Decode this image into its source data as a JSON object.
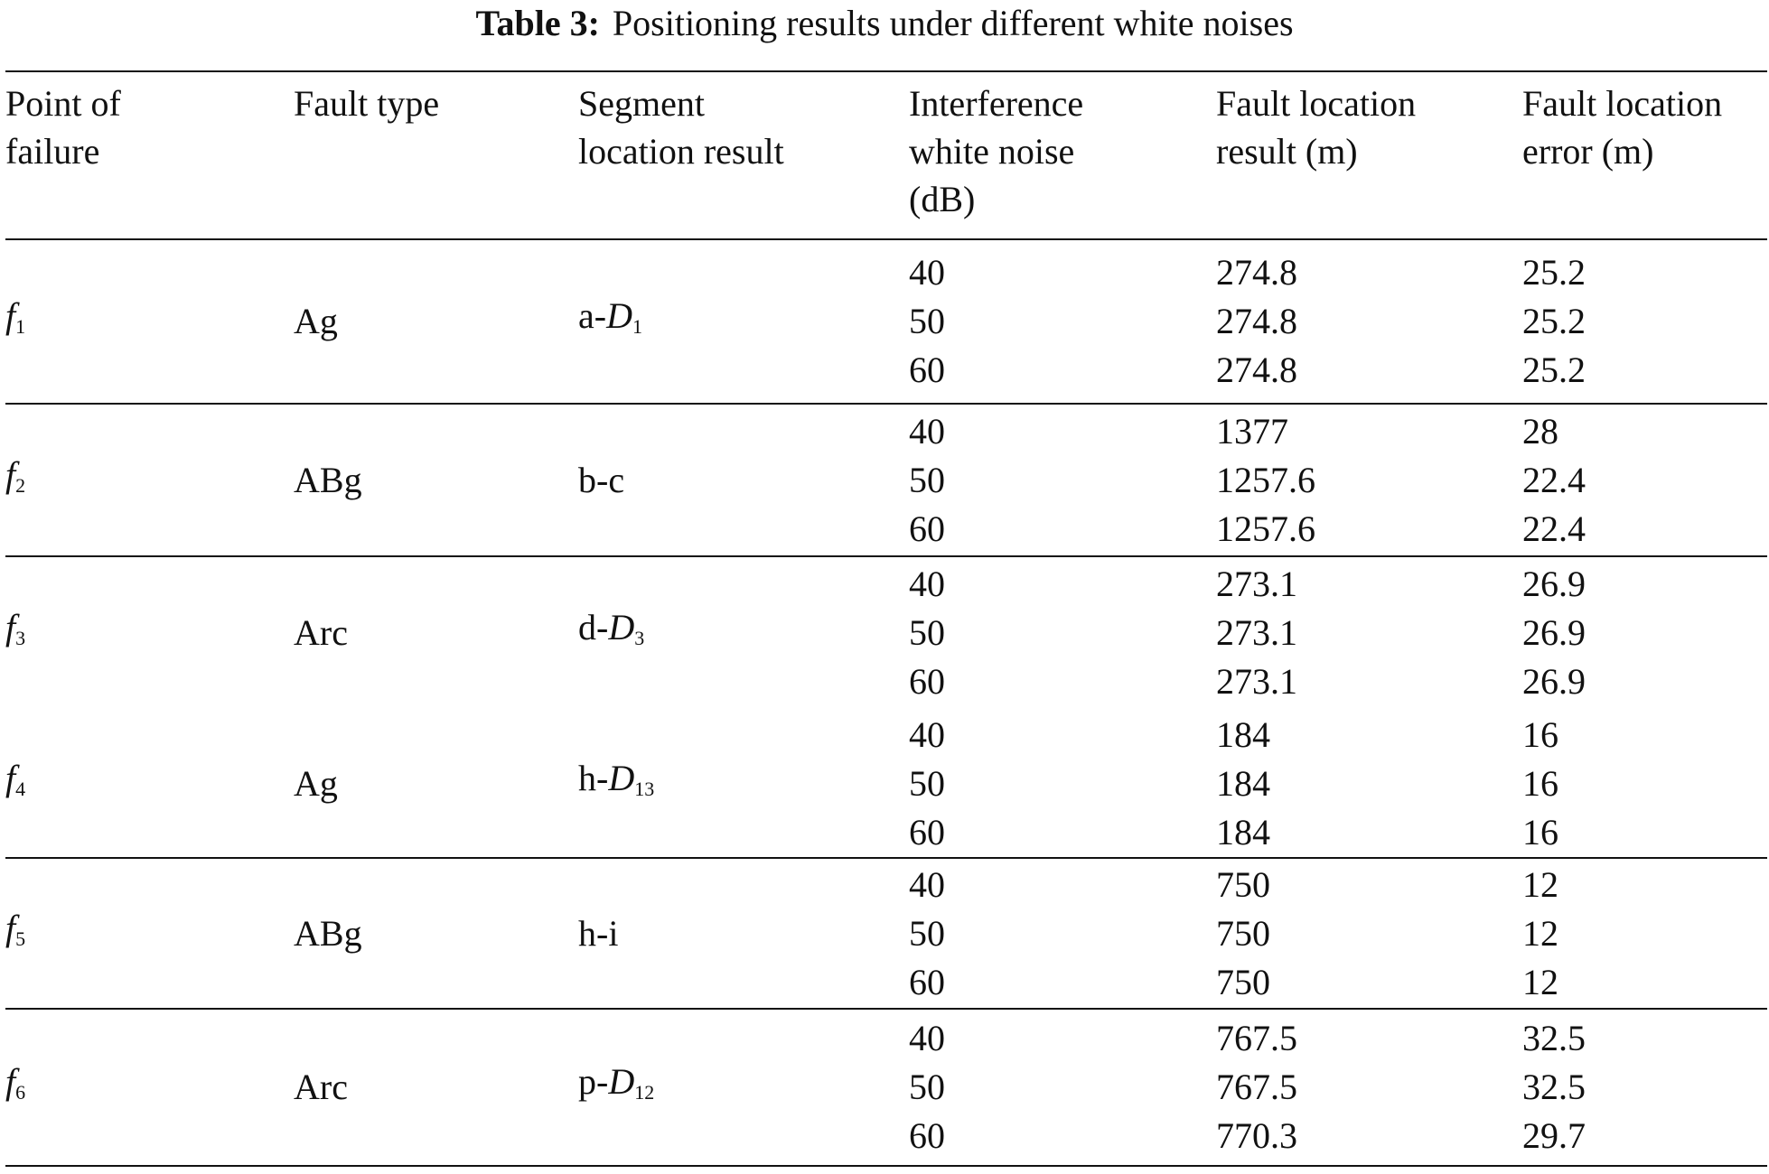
{
  "caption": {
    "label": "Table 3:",
    "title": "Positioning results under different white noises"
  },
  "table": {
    "headers": [
      [
        "Point of",
        "failure"
      ],
      [
        "Fault type"
      ],
      [
        "Segment",
        "location result"
      ],
      [
        "Interference",
        "white noise",
        "(dB)"
      ],
      [
        "Fault location",
        "result (m)"
      ],
      [
        "Fault location",
        "error (m)"
      ]
    ],
    "groups": [
      {
        "point": {
          "symbol": "f",
          "sub": "1"
        },
        "fault_type": "Ag",
        "segment": {
          "text": "a-",
          "symbol": "D",
          "sub": "1"
        },
        "rows": [
          [
            40,
            274.8,
            25.2
          ],
          [
            50,
            274.8,
            25.2
          ],
          [
            60,
            274.8,
            25.2
          ]
        ]
      },
      {
        "point": {
          "symbol": "f",
          "sub": "2"
        },
        "fault_type": "ABg",
        "segment": {
          "text": "b-c"
        },
        "rows": [
          [
            40,
            1377,
            28
          ],
          [
            50,
            1257.6,
            22.4
          ],
          [
            60,
            1257.6,
            22.4
          ]
        ]
      },
      {
        "point": {
          "symbol": "f",
          "sub": "3"
        },
        "fault_type": "Arc",
        "segment": {
          "text": "d-",
          "symbol": "D",
          "sub": "3"
        },
        "rows": [
          [
            40,
            273.1,
            26.9
          ],
          [
            50,
            273.1,
            26.9
          ],
          [
            60,
            273.1,
            26.9
          ]
        ]
      },
      {
        "point": {
          "symbol": "f",
          "sub": "4"
        },
        "fault_type": "Ag",
        "segment": {
          "text": "h-",
          "symbol": "D",
          "sub": "13"
        },
        "rows": [
          [
            40,
            184,
            16
          ],
          [
            50,
            184,
            16
          ],
          [
            60,
            184,
            16
          ]
        ]
      },
      {
        "point": {
          "symbol": "f",
          "sub": "5"
        },
        "fault_type": "ABg",
        "segment": {
          "text": "h-i"
        },
        "rows": [
          [
            40,
            750,
            12
          ],
          [
            50,
            750,
            12
          ],
          [
            60,
            750,
            12
          ]
        ]
      },
      {
        "point": {
          "symbol": "f",
          "sub": "6"
        },
        "fault_type": "Arc",
        "segment": {
          "text": "p-",
          "symbol": "D",
          "sub": "12"
        },
        "rows": [
          [
            40,
            767.5,
            32.5
          ],
          [
            50,
            767.5,
            32.5
          ],
          [
            60,
            770.3,
            29.7
          ]
        ]
      }
    ]
  }
}
